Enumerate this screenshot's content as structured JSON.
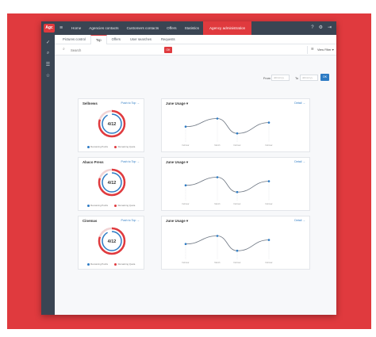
{
  "app": {
    "logo_text": "Agc"
  },
  "nav": {
    "items": [
      {
        "label": "Home"
      },
      {
        "label": "Agencies contacts"
      },
      {
        "label": "Customers contacts"
      },
      {
        "label": "Offers"
      },
      {
        "label": "Statistics"
      },
      {
        "label": "Agency administration",
        "active": true
      }
    ]
  },
  "subtabs": [
    {
      "label": "Pictures control"
    },
    {
      "label": "Top",
      "active": true
    },
    {
      "label": "Offers"
    },
    {
      "label": "User searches"
    },
    {
      "label": "Requests"
    }
  ],
  "search": {
    "placeholder": "Search",
    "ok_label": "OK"
  },
  "filters": {
    "label": "View Filter"
  },
  "date": {
    "from_label": "From",
    "to_label": "To",
    "from_placeholder": "dd/mm/yy",
    "to_placeholder": "dd/mm/yy",
    "ok_label": "OK"
  },
  "colors": {
    "accent": "#e03a3e",
    "primary": "#2d7bc4",
    "dark": "#3a4553"
  },
  "rows": [
    {
      "donut": {
        "title": "Sellnews",
        "link": "Push to Top →",
        "value_text": "4/12",
        "fraction": 0.33,
        "legend_remaining": "Remaining Pushs",
        "legend_used": "Remaining Quota"
      },
      "usage": {
        "title": "Usage",
        "title_prefix": "June",
        "link": "Detail →",
        "x_labels": [
          "Februar",
          "March",
          "Februar",
          "Februar"
        ],
        "values": [
          0.45,
          0.75,
          0.2,
          0.6
        ]
      }
    },
    {
      "donut": {
        "title": "Abaco Press",
        "link": "Push to Top →",
        "value_text": "4/12",
        "fraction": 0.33,
        "legend_remaining": "Remaining Pushs",
        "legend_used": "Remaining Quota"
      },
      "usage": {
        "title": "Usage",
        "title_prefix": "June",
        "link": "Detail →",
        "x_labels": [
          "Februar",
          "March",
          "Februar",
          "Februar"
        ],
        "values": [
          0.45,
          0.75,
          0.2,
          0.6
        ]
      }
    },
    {
      "donut": {
        "title": "Cinemas",
        "link": "Push to Top →",
        "value_text": "4/12",
        "fraction": 0.33,
        "legend_remaining": "Remaining Pushs",
        "legend_used": "Remaining Quota"
      },
      "usage": {
        "title": "Usage",
        "title_prefix": "June",
        "link": "Detail →",
        "x_labels": [
          "Februar",
          "March",
          "Februar",
          "Februar"
        ],
        "values": [
          0.45,
          0.75,
          0.2,
          0.6
        ]
      }
    }
  ]
}
